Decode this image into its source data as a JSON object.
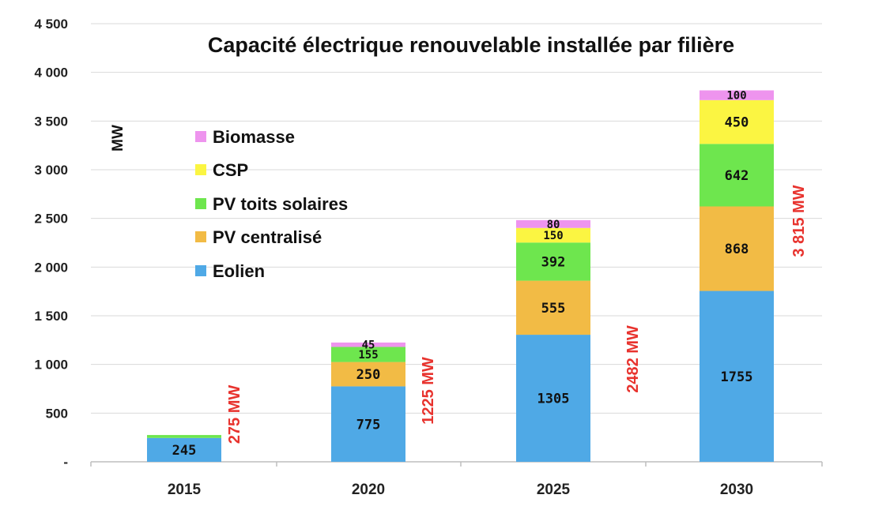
{
  "chart_data": {
    "type": "bar",
    "stacked": true,
    "title": "Capacité électrique renouvelable installée par filière",
    "ylabel": "MW",
    "ylim": [
      0,
      4500
    ],
    "yticks": [
      {
        "value": 0,
        "label": "-"
      },
      {
        "value": 500,
        "label": "500"
      },
      {
        "value": 1000,
        "label": "1 000"
      },
      {
        "value": 1500,
        "label": "1 500"
      },
      {
        "value": 2000,
        "label": "2 000"
      },
      {
        "value": 2500,
        "label": "2 500"
      },
      {
        "value": 3000,
        "label": "3 000"
      },
      {
        "value": 3500,
        "label": "3 500"
      },
      {
        "value": 4000,
        "label": "4 000"
      },
      {
        "value": 4500,
        "label": "4 500"
      }
    ],
    "categories": [
      "2015",
      "2020",
      "2025",
      "2030"
    ],
    "grid": true,
    "legend_position": "top-left",
    "series": [
      {
        "name": "Eolien",
        "color": "#4fa9e6",
        "values": [
          245,
          775,
          1305,
          1755
        ],
        "labels": [
          "245",
          "775",
          "1305",
          "1755"
        ]
      },
      {
        "name": "PV centralisé",
        "color": "#f2bb45",
        "values": [
          0,
          250,
          555,
          868
        ],
        "labels": [
          "",
          "250",
          "555",
          "868"
        ]
      },
      {
        "name": "PV toits solaires",
        "color": "#6ee64e",
        "values": [
          30,
          155,
          392,
          642
        ],
        "labels": [
          "",
          "155",
          "392",
          "642"
        ]
      },
      {
        "name": "CSP",
        "color": "#fbf542",
        "values": [
          0,
          0,
          150,
          450
        ],
        "labels": [
          "",
          "",
          "150",
          "450"
        ]
      },
      {
        "name": "Biomasse",
        "color": "#ee94ee",
        "values": [
          0,
          45,
          80,
          100
        ],
        "labels": [
          "",
          "45",
          "80",
          "100"
        ]
      }
    ],
    "totals": [
      "275 MW",
      "1225 MW",
      "2482 MW",
      "3 815 MW"
    ],
    "total_color": "#e8332e"
  }
}
